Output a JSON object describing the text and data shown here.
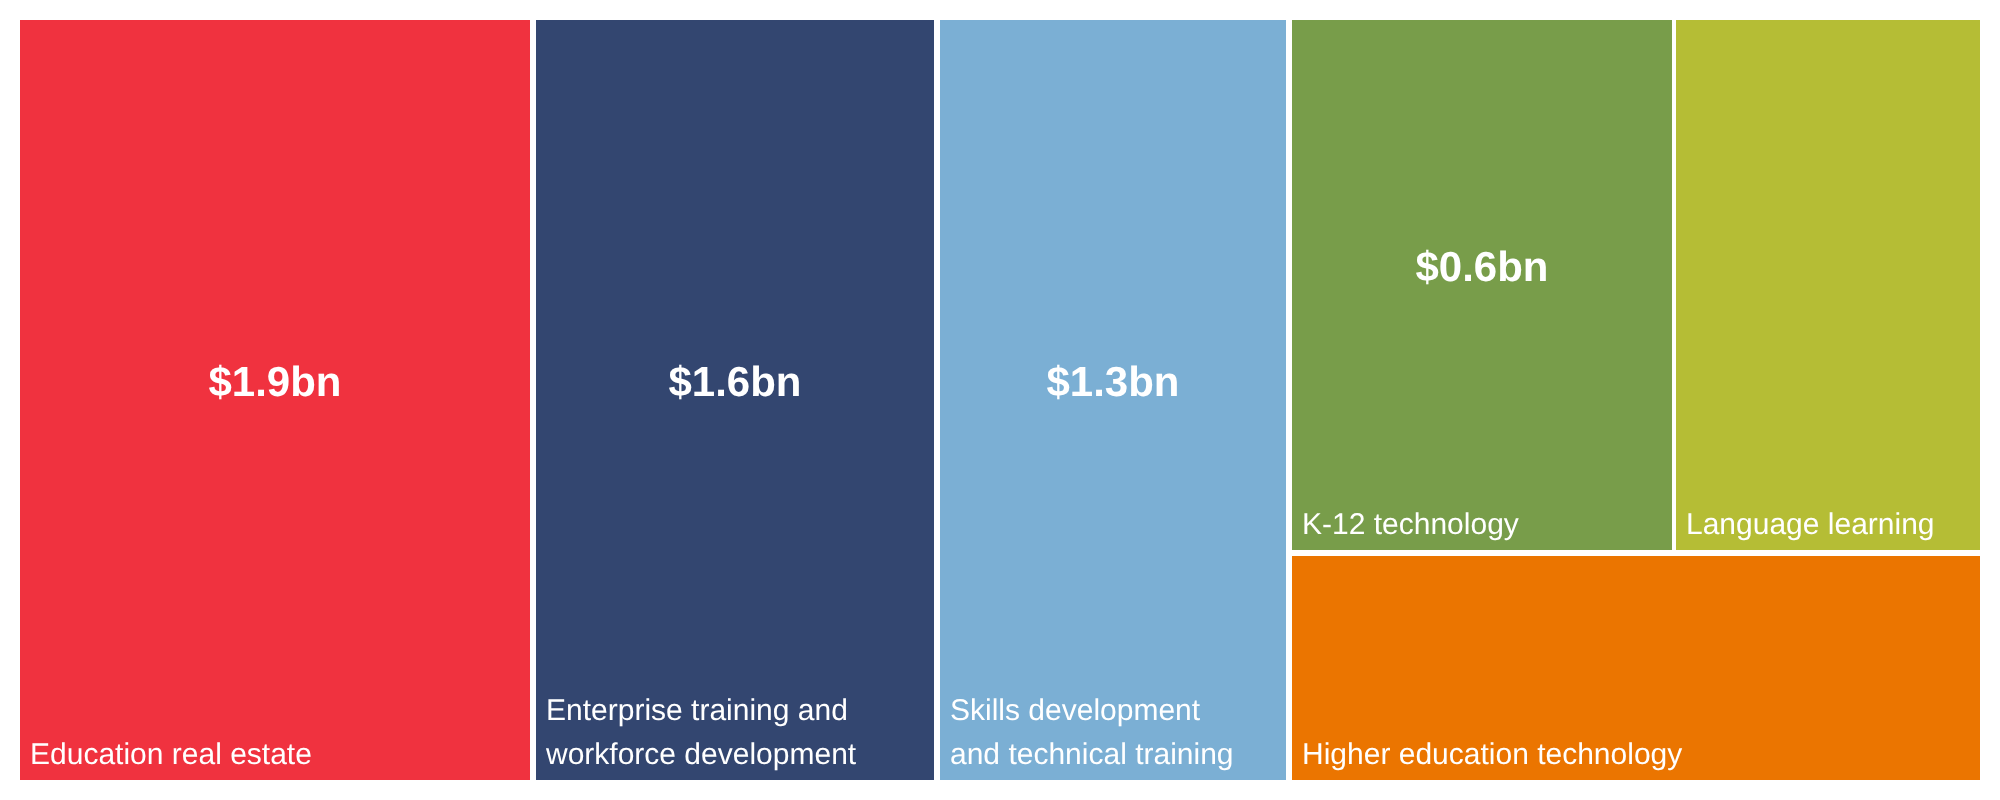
{
  "chart_data": {
    "type": "other",
    "categories": [
      "Education real estate",
      "Enterprise training and workforce development",
      "Skills development and technical training",
      "K-12 technology",
      "Language learning",
      "Higher education technology"
    ],
    "values": [
      1.9,
      1.6,
      1.3,
      0.6,
      null,
      null
    ],
    "value_labels": [
      "$1.9bn",
      "$1.6bn",
      "$1.3bn",
      "$0.6bn",
      null,
      null
    ],
    "colors": [
      "#f0323f",
      "#334670",
      "#7bafd4",
      "#789d4a",
      "#b5bd35",
      "#eb7500"
    ]
  }
}
